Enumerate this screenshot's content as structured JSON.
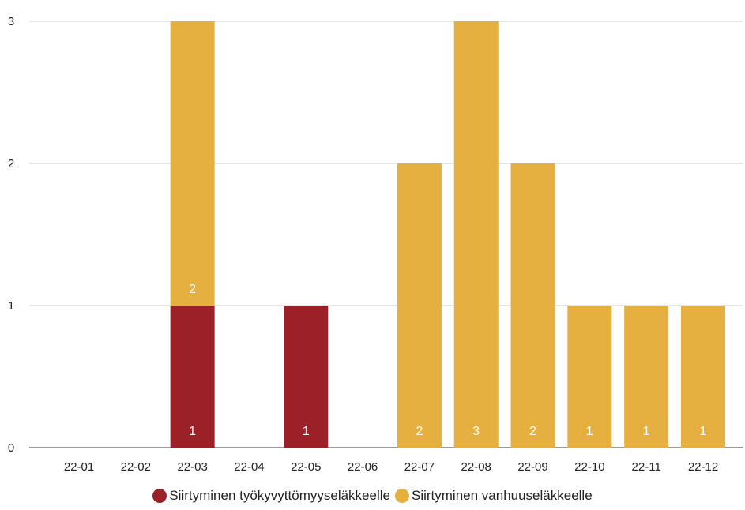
{
  "chart_data": {
    "type": "bar",
    "stacked": true,
    "title": "",
    "xlabel": "",
    "ylabel": "",
    "categories": [
      "22-01",
      "22-02",
      "22-03",
      "22-04",
      "22-05",
      "22-06",
      "22-07",
      "22-08",
      "22-09",
      "22-10",
      "22-11",
      "22-12"
    ],
    "series": [
      {
        "name": "Siirtyminen työkyvyttömyyseläkkeelle",
        "color": "#9b2028",
        "values": [
          0,
          0,
          1,
          0,
          1,
          0,
          0,
          0,
          0,
          0,
          0,
          0
        ]
      },
      {
        "name": "Siirtyminen vanhuuseläkkeelle",
        "color": "#e6b041",
        "values": [
          0,
          0,
          2,
          0,
          0,
          0,
          2,
          3,
          2,
          1,
          1,
          1
        ]
      }
    ],
    "ylim": [
      0,
      3
    ],
    "yticks": [
      0,
      1,
      2,
      3
    ],
    "grid": true,
    "legend_position": "bottom"
  }
}
